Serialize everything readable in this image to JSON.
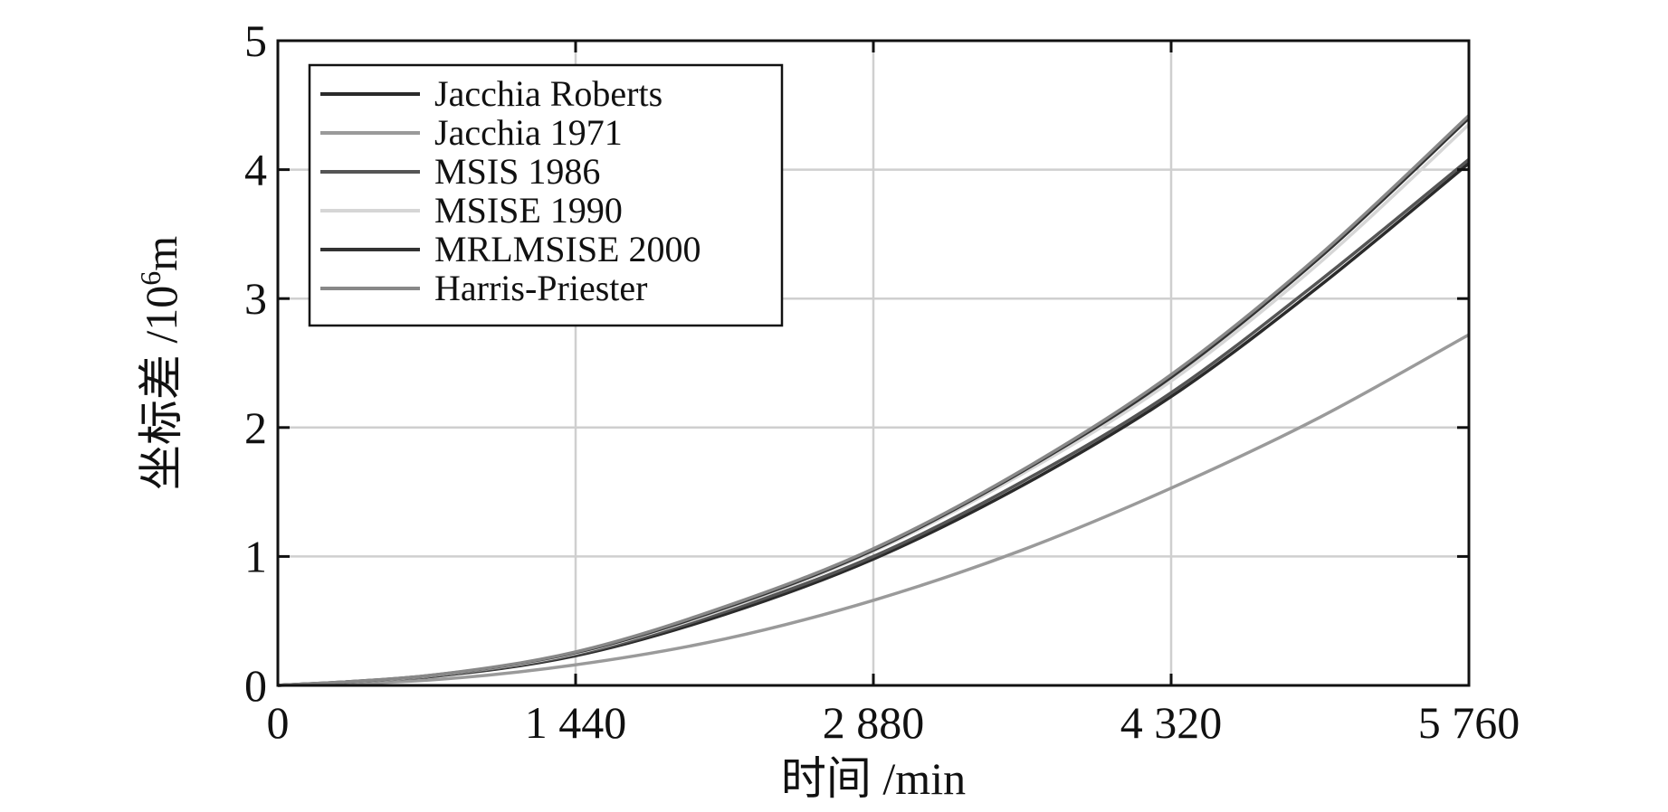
{
  "chart_data": {
    "type": "line",
    "title": "",
    "xlabel": "时间 /min",
    "ylabel_prefix": "坐标差 /10",
    "ylabel_sup": "6",
    "ylabel_suffix": "m",
    "xlim": [
      0,
      5760
    ],
    "ylim": [
      0,
      5
    ],
    "xticks": [
      0,
      1440,
      2880,
      4320,
      5760
    ],
    "xtick_labels": [
      "0",
      "1 440",
      "2 880",
      "4 320",
      "5 760"
    ],
    "yticks": [
      0,
      1,
      2,
      3,
      4,
      5
    ],
    "ytick_labels": [
      "0",
      "1",
      "2",
      "3",
      "4",
      "5"
    ],
    "grid": true,
    "legend_position": "top-left",
    "series": [
      {
        "name": "Jacchia Roberts",
        "color": "#2a2a2a",
        "x": [
          0,
          720,
          1440,
          2160,
          2880,
          3600,
          4320,
          5040,
          5760
        ],
        "y": [
          0,
          0.065,
          0.23,
          0.55,
          0.98,
          1.55,
          2.24,
          3.1,
          4.05
        ]
      },
      {
        "name": "Jacchia 1971",
        "color": "#9a9a9a",
        "x": [
          0,
          720,
          1440,
          2160,
          2880,
          3600,
          4320,
          5040,
          5760
        ],
        "y": [
          0,
          0.04,
          0.16,
          0.36,
          0.66,
          1.05,
          1.53,
          2.08,
          2.72
        ]
      },
      {
        "name": "MSIS 1986",
        "color": "#555555",
        "x": [
          0,
          720,
          1440,
          2160,
          2880,
          3600,
          4320,
          5040,
          5760
        ],
        "y": [
          0,
          0.068,
          0.24,
          0.57,
          1.0,
          1.58,
          2.27,
          3.14,
          4.08
        ]
      },
      {
        "name": "MSISE 1990",
        "color": "#d6d6d6",
        "x": [
          0,
          720,
          1440,
          2160,
          2880,
          3600,
          4320,
          5040,
          5760
        ],
        "y": [
          0,
          0.072,
          0.25,
          0.59,
          1.04,
          1.64,
          2.36,
          3.28,
          4.35
        ]
      },
      {
        "name": "MRLMSISE 2000",
        "color": "#333333",
        "x": [
          0,
          720,
          1440,
          2160,
          2880,
          3600,
          4320,
          5040,
          5760
        ],
        "y": [
          0,
          0.074,
          0.255,
          0.6,
          1.05,
          1.66,
          2.39,
          3.32,
          4.4
        ]
      },
      {
        "name": "Harris-Priester",
        "color": "#888888",
        "x": [
          0,
          720,
          1440,
          2160,
          2880,
          3600,
          4320,
          5040,
          5760
        ],
        "y": [
          0,
          0.075,
          0.26,
          0.61,
          1.06,
          1.67,
          2.41,
          3.34,
          4.42
        ]
      }
    ]
  }
}
